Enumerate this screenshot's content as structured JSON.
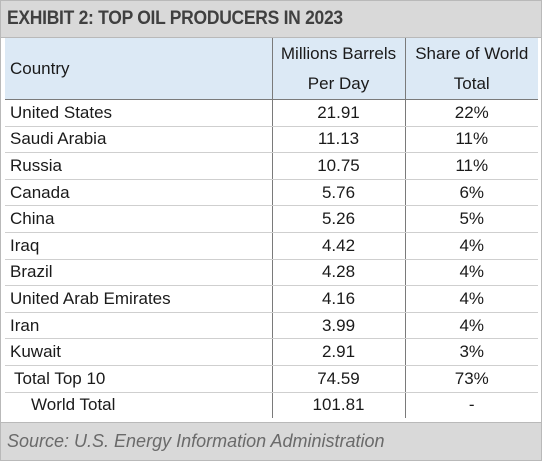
{
  "title": "EXHIBIT 2: TOP OIL PRODUCERS IN 2023",
  "headers": {
    "country": "Country",
    "mbpd_line1": "Millions Barrels",
    "mbpd_line2": "Per Day",
    "share_line1": "Share of World",
    "share_line2": "Total"
  },
  "rows": [
    {
      "country": "United States",
      "mbpd": "21.91",
      "share": "22%"
    },
    {
      "country": "Saudi Arabia",
      "mbpd": "11.13",
      "share": "11%"
    },
    {
      "country": "Russia",
      "mbpd": "10.75",
      "share": "11%"
    },
    {
      "country": "Canada",
      "mbpd": "5.76",
      "share": "6%"
    },
    {
      "country": "China",
      "mbpd": "5.26",
      "share": "5%"
    },
    {
      "country": "Iraq",
      "mbpd": "4.42",
      "share": "4%"
    },
    {
      "country": "Brazil",
      "mbpd": "4.28",
      "share": "4%"
    },
    {
      "country": "United Arab Emirates",
      "mbpd": "4.16",
      "share": "4%"
    },
    {
      "country": "Iran",
      "mbpd": "3.99",
      "share": "4%"
    },
    {
      "country": "Kuwait",
      "mbpd": "2.91",
      "share": "3%"
    },
    {
      "country": "Total Top 10",
      "mbpd": "74.59",
      "share": "73%"
    },
    {
      "country": "World Total",
      "mbpd": "101.81",
      "share": "-"
    }
  ],
  "source": "Source: U.S. Energy Information Administration"
}
